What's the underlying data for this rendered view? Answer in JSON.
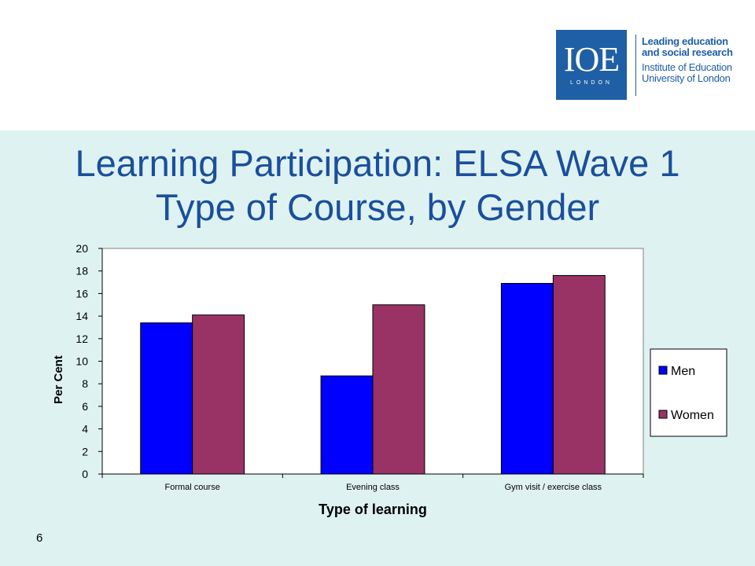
{
  "header": {
    "logo": {
      "mark": "IOE",
      "sub": "LONDON",
      "color": "#1f5fa6"
    },
    "tagline": [
      "Leading education",
      "and social research"
    ],
    "institution": [
      "Institute of Education",
      "University of London"
    ]
  },
  "slide": {
    "title_line1": "Learning Participation: ELSA Wave 1",
    "title_line2": "Type of Course, by Gender",
    "page_number": "6",
    "background": "#dff2f2",
    "title_color": "#1a4f9c"
  },
  "chart_data": {
    "type": "bar",
    "categories": [
      "Formal course",
      "Evening class",
      "Gym visit / exercise class"
    ],
    "series": [
      {
        "name": "Men",
        "values": [
          13.4,
          8.7,
          16.9
        ],
        "color": "#0000ff"
      },
      {
        "name": "Women",
        "values": [
          14.1,
          15.0,
          17.6
        ],
        "color": "#993366"
      }
    ],
    "xlabel": "Type of learning",
    "ylabel": "Per Cent",
    "ylim": [
      0,
      20
    ],
    "yticks": [
      0,
      2,
      4,
      6,
      8,
      10,
      12,
      14,
      16,
      18,
      20
    ],
    "grid": false,
    "legend": "right"
  }
}
